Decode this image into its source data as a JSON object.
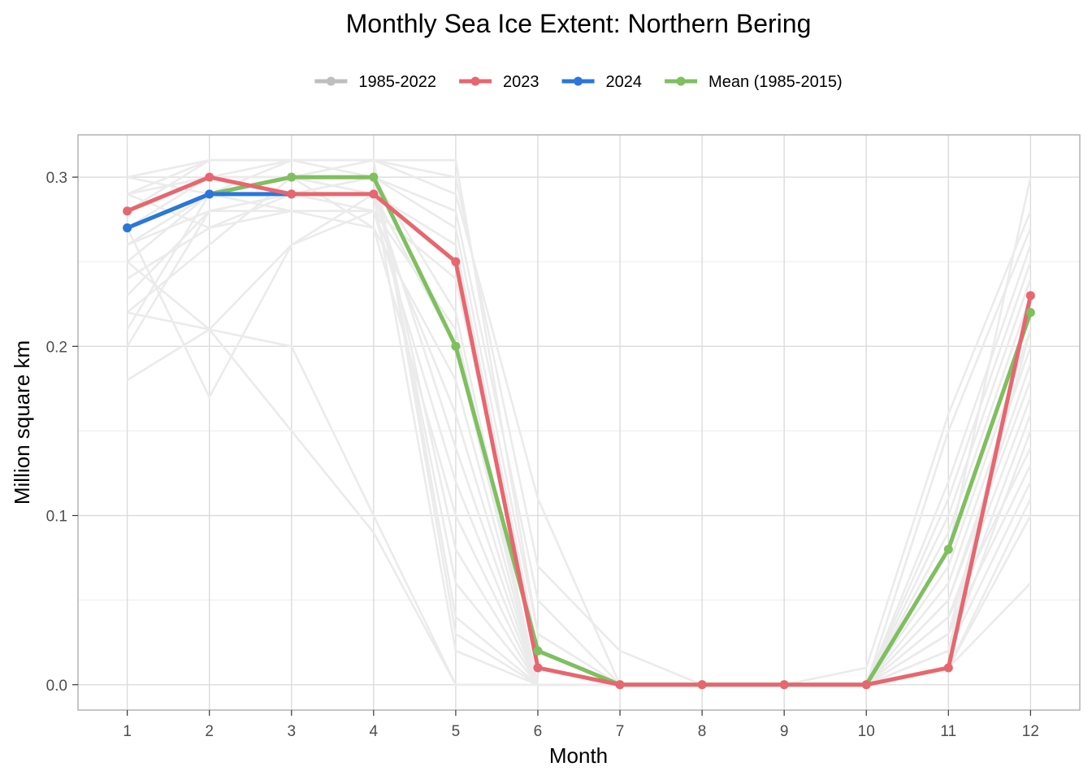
{
  "chart_data": {
    "type": "line",
    "title": "Monthly Sea Ice Extent: Northern Bering",
    "xlabel": "Month",
    "ylabel": "Million square km",
    "x": [
      1,
      2,
      3,
      4,
      5,
      6,
      7,
      8,
      9,
      10,
      11,
      12
    ],
    "x_ticks": [
      "1",
      "2",
      "3",
      "4",
      "5",
      "6",
      "7",
      "8",
      "9",
      "10",
      "11",
      "12"
    ],
    "xlim": [
      0.4,
      12.6
    ],
    "ylim": [
      -0.015,
      0.325
    ],
    "y_ticks": [
      "0.0",
      "0.1",
      "0.2",
      "0.3"
    ],
    "y_tick_values": [
      0.0,
      0.1,
      0.2,
      0.3
    ],
    "y_minor_values": [
      0.05,
      0.15,
      0.25
    ],
    "grid": true,
    "legend_position": "top",
    "legend": [
      {
        "label": "1985-2022",
        "color": "#bebebe"
      },
      {
        "label": "2023",
        "color": "#e8666f"
      },
      {
        "label": "2024",
        "color": "#2a76dd"
      },
      {
        "label": "Mean (1985-2015)",
        "color": "#7fbf5f"
      }
    ],
    "history_color": "#ebebeb",
    "history": [
      [
        0.3,
        0.31,
        0.31,
        0.31,
        0.31,
        0.03,
        0.0,
        0.0,
        0.0,
        0.0,
        0.08,
        0.3
      ],
      [
        0.29,
        0.31,
        0.31,
        0.31,
        0.3,
        0.07,
        0.02,
        0.0,
        0.0,
        0.01,
        0.16,
        0.28
      ],
      [
        0.29,
        0.3,
        0.31,
        0.31,
        0.29,
        0.11,
        0.0,
        0.0,
        0.0,
        0.0,
        0.15,
        0.27
      ],
      [
        0.28,
        0.3,
        0.3,
        0.3,
        0.28,
        0.05,
        0.0,
        0.0,
        0.0,
        0.0,
        0.12,
        0.26
      ],
      [
        0.27,
        0.29,
        0.29,
        0.3,
        0.27,
        0.03,
        0.0,
        0.0,
        0.0,
        0.0,
        0.11,
        0.25
      ],
      [
        0.26,
        0.29,
        0.29,
        0.29,
        0.26,
        0.02,
        0.0,
        0.0,
        0.0,
        0.0,
        0.1,
        0.24
      ],
      [
        0.26,
        0.28,
        0.29,
        0.29,
        0.25,
        0.01,
        0.0,
        0.0,
        0.0,
        0.0,
        0.09,
        0.23
      ],
      [
        0.25,
        0.29,
        0.28,
        0.28,
        0.24,
        0.02,
        0.0,
        0.0,
        0.0,
        0.0,
        0.08,
        0.22
      ],
      [
        0.24,
        0.27,
        0.29,
        0.3,
        0.22,
        0.0,
        0.0,
        0.0,
        0.0,
        0.0,
        0.07,
        0.21
      ],
      [
        0.23,
        0.28,
        0.28,
        0.28,
        0.21,
        0.0,
        0.0,
        0.0,
        0.0,
        0.0,
        0.06,
        0.2
      ],
      [
        0.22,
        0.26,
        0.3,
        0.29,
        0.2,
        0.0,
        0.0,
        0.0,
        0.0,
        0.0,
        0.05,
        0.19
      ],
      [
        0.21,
        0.29,
        0.3,
        0.27,
        0.18,
        0.0,
        0.0,
        0.0,
        0.0,
        0.0,
        0.05,
        0.18
      ],
      [
        0.2,
        0.28,
        0.29,
        0.28,
        0.16,
        0.0,
        0.0,
        0.0,
        0.0,
        0.0,
        0.04,
        0.17
      ],
      [
        0.25,
        0.21,
        0.2,
        0.1,
        0.0,
        0.0,
        0.0,
        0.0,
        0.0,
        0.0,
        0.03,
        0.16
      ],
      [
        0.22,
        0.21,
        0.15,
        0.09,
        0.0,
        0.0,
        0.0,
        0.0,
        0.0,
        0.0,
        0.02,
        0.15
      ],
      [
        0.18,
        0.21,
        0.26,
        0.29,
        0.14,
        0.0,
        0.0,
        0.0,
        0.0,
        0.0,
        0.04,
        0.14
      ],
      [
        0.27,
        0.17,
        0.26,
        0.28,
        0.12,
        0.0,
        0.0,
        0.0,
        0.0,
        0.0,
        0.03,
        0.13
      ],
      [
        0.29,
        0.27,
        0.28,
        0.27,
        0.1,
        0.0,
        0.0,
        0.0,
        0.0,
        0.0,
        0.02,
        0.12
      ],
      [
        0.3,
        0.29,
        0.3,
        0.3,
        0.08,
        0.0,
        0.0,
        0.0,
        0.0,
        0.0,
        0.01,
        0.11
      ],
      [
        0.28,
        0.31,
        0.31,
        0.3,
        0.06,
        0.0,
        0.0,
        0.0,
        0.0,
        0.0,
        0.01,
        0.1
      ],
      [
        0.27,
        0.3,
        0.3,
        0.31,
        0.04,
        0.0,
        0.0,
        0.0,
        0.0,
        0.0,
        0.01,
        0.06
      ],
      [
        0.26,
        0.29,
        0.31,
        0.31,
        0.03,
        0.0,
        0.0,
        0.0,
        0.0,
        0.0,
        0.02,
        0.23
      ],
      [
        0.29,
        0.3,
        0.3,
        0.29,
        0.02,
        0.0,
        0.0,
        0.0,
        0.0,
        0.0,
        0.03,
        0.21
      ]
    ],
    "series": [
      {
        "name": "2023",
        "color": "#e8666f",
        "values": [
          0.28,
          0.3,
          0.29,
          0.29,
          0.25,
          0.01,
          0.0,
          0.0,
          0.0,
          0.0,
          0.01,
          0.23
        ]
      },
      {
        "name": "2024",
        "color": "#2a76dd",
        "values": [
          0.27,
          0.29,
          0.29,
          null,
          null,
          null,
          null,
          null,
          null,
          null,
          null,
          null
        ]
      },
      {
        "name": "Mean (1985-2015)",
        "color": "#7fbf5f",
        "values": [
          0.27,
          0.29,
          0.3,
          0.3,
          0.2,
          0.02,
          0.0,
          0.0,
          0.0,
          0.0,
          0.08,
          0.22
        ]
      }
    ]
  }
}
